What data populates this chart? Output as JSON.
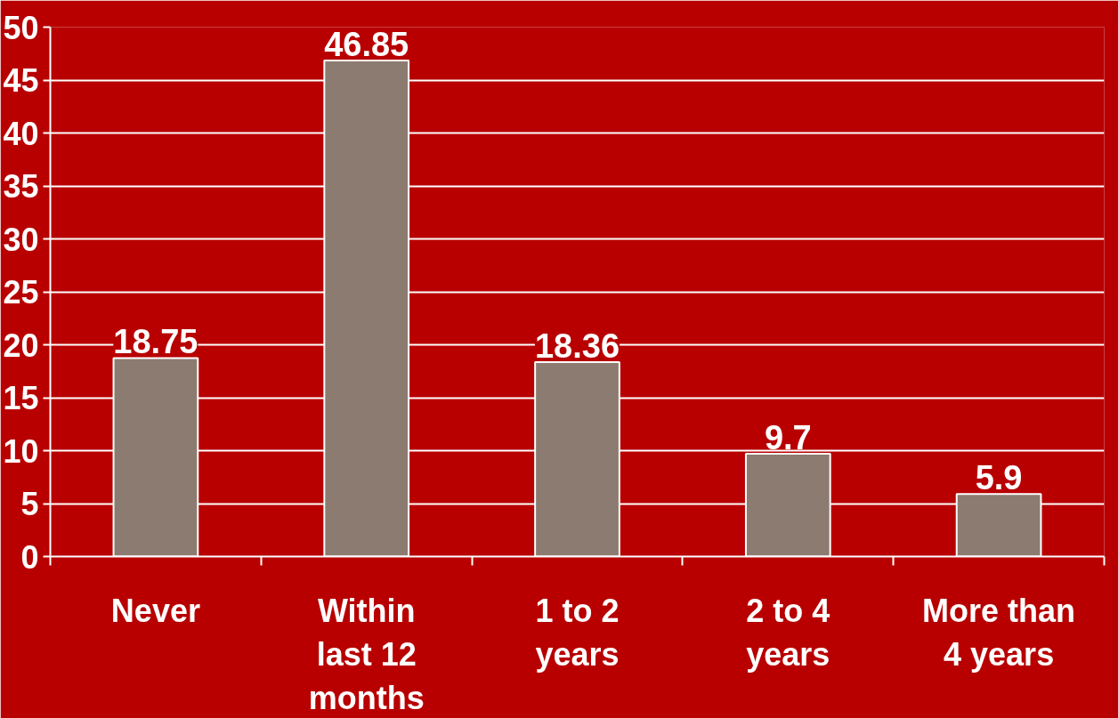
{
  "chart_data": {
    "type": "bar",
    "categories": [
      "Never",
      "Within last 12 months",
      "1 to 2 years",
      "2 to 4 years",
      "More than 4 years"
    ],
    "values": [
      18.75,
      46.85,
      18.36,
      9.7,
      5.9
    ],
    "color": "#8c7b70",
    "ylim": [
      0,
      50
    ],
    "yticks": [
      0,
      5,
      10,
      15,
      20,
      25,
      30,
      35,
      40,
      45,
      50
    ],
    "grid": "y",
    "data_labels": true
  }
}
